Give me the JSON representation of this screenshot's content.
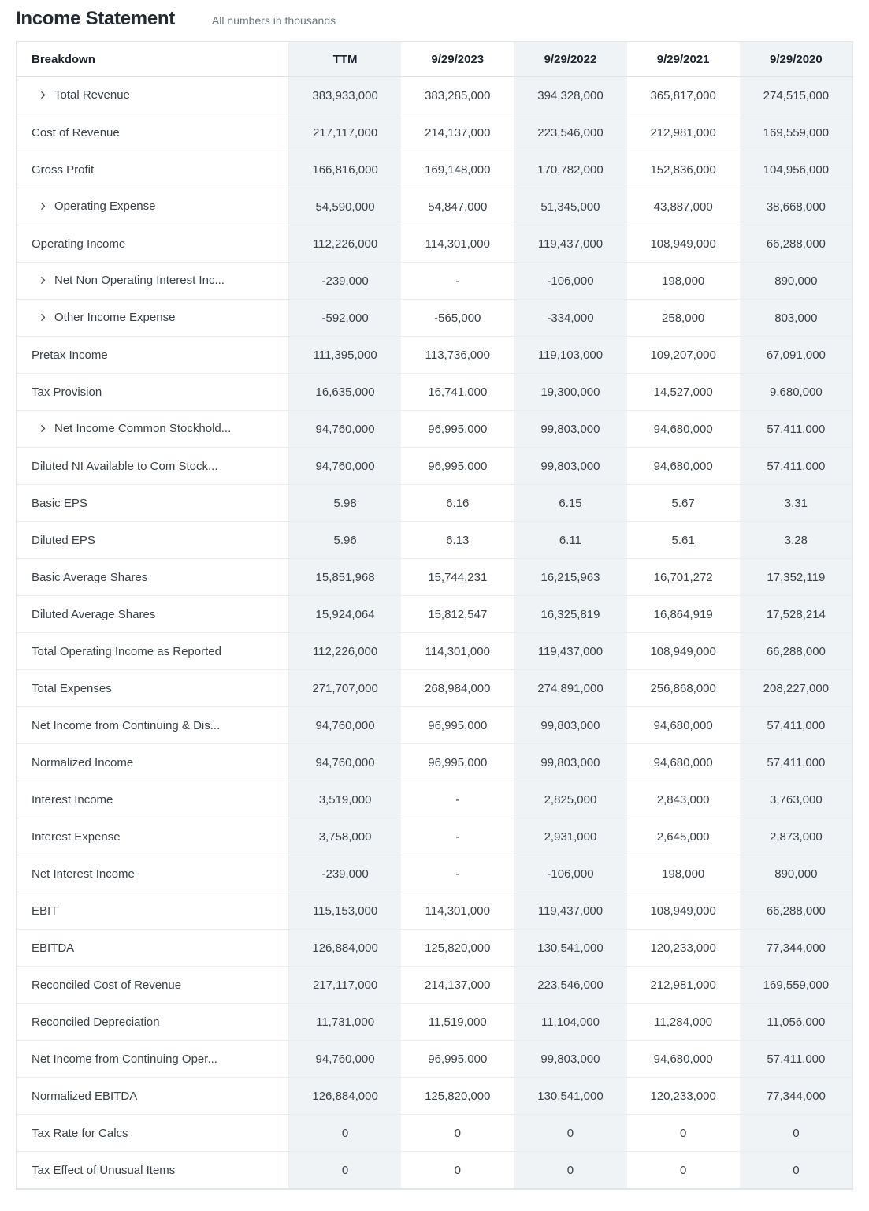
{
  "page": {
    "title": "Income Statement",
    "subtitle": "All numbers in thousands"
  },
  "colors": {
    "stripe_background": "#f0f3f6",
    "table_border": "#e2e6ea",
    "header_text": "#1b222c",
    "body_text": "#3a4149",
    "subtitle_text": "#6e7780"
  },
  "table": {
    "columns": [
      "Breakdown",
      "TTM",
      "9/29/2023",
      "9/29/2022",
      "9/29/2021",
      "9/29/2020"
    ],
    "rows": [
      {
        "label": "Total Revenue",
        "expandable": true,
        "values": [
          "383,933,000",
          "383,285,000",
          "394,328,000",
          "365,817,000",
          "274,515,000"
        ]
      },
      {
        "label": "Cost of Revenue",
        "expandable": false,
        "values": [
          "217,117,000",
          "214,137,000",
          "223,546,000",
          "212,981,000",
          "169,559,000"
        ]
      },
      {
        "label": "Gross Profit",
        "expandable": false,
        "values": [
          "166,816,000",
          "169,148,000",
          "170,782,000",
          "152,836,000",
          "104,956,000"
        ]
      },
      {
        "label": "Operating Expense",
        "expandable": true,
        "values": [
          "54,590,000",
          "54,847,000",
          "51,345,000",
          "43,887,000",
          "38,668,000"
        ]
      },
      {
        "label": "Operating Income",
        "expandable": false,
        "values": [
          "112,226,000",
          "114,301,000",
          "119,437,000",
          "108,949,000",
          "66,288,000"
        ]
      },
      {
        "label": "Net Non Operating Interest Inc...",
        "expandable": true,
        "values": [
          "-239,000",
          "-",
          "-106,000",
          "198,000",
          "890,000"
        ]
      },
      {
        "label": "Other Income Expense",
        "expandable": true,
        "values": [
          "-592,000",
          "-565,000",
          "-334,000",
          "258,000",
          "803,000"
        ]
      },
      {
        "label": "Pretax Income",
        "expandable": false,
        "values": [
          "111,395,000",
          "113,736,000",
          "119,103,000",
          "109,207,000",
          "67,091,000"
        ]
      },
      {
        "label": "Tax Provision",
        "expandable": false,
        "values": [
          "16,635,000",
          "16,741,000",
          "19,300,000",
          "14,527,000",
          "9,680,000"
        ]
      },
      {
        "label": "Net Income Common Stockhold...",
        "expandable": true,
        "values": [
          "94,760,000",
          "96,995,000",
          "99,803,000",
          "94,680,000",
          "57,411,000"
        ]
      },
      {
        "label": "Diluted NI Available to Com Stock...",
        "expandable": false,
        "values": [
          "94,760,000",
          "96,995,000",
          "99,803,000",
          "94,680,000",
          "57,411,000"
        ]
      },
      {
        "label": "Basic EPS",
        "expandable": false,
        "values": [
          "5.98",
          "6.16",
          "6.15",
          "5.67",
          "3.31"
        ]
      },
      {
        "label": "Diluted EPS",
        "expandable": false,
        "values": [
          "5.96",
          "6.13",
          "6.11",
          "5.61",
          "3.28"
        ]
      },
      {
        "label": "Basic Average Shares",
        "expandable": false,
        "values": [
          "15,851,968",
          "15,744,231",
          "16,215,963",
          "16,701,272",
          "17,352,119"
        ]
      },
      {
        "label": "Diluted Average Shares",
        "expandable": false,
        "values": [
          "15,924,064",
          "15,812,547",
          "16,325,819",
          "16,864,919",
          "17,528,214"
        ]
      },
      {
        "label": "Total Operating Income as Reported",
        "expandable": false,
        "values": [
          "112,226,000",
          "114,301,000",
          "119,437,000",
          "108,949,000",
          "66,288,000"
        ]
      },
      {
        "label": "Total Expenses",
        "expandable": false,
        "values": [
          "271,707,000",
          "268,984,000",
          "274,891,000",
          "256,868,000",
          "208,227,000"
        ]
      },
      {
        "label": "Net Income from Continuing & Dis...",
        "expandable": false,
        "values": [
          "94,760,000",
          "96,995,000",
          "99,803,000",
          "94,680,000",
          "57,411,000"
        ]
      },
      {
        "label": "Normalized Income",
        "expandable": false,
        "values": [
          "94,760,000",
          "96,995,000",
          "99,803,000",
          "94,680,000",
          "57,411,000"
        ]
      },
      {
        "label": "Interest Income",
        "expandable": false,
        "values": [
          "3,519,000",
          "-",
          "2,825,000",
          "2,843,000",
          "3,763,000"
        ]
      },
      {
        "label": "Interest Expense",
        "expandable": false,
        "values": [
          "3,758,000",
          "-",
          "2,931,000",
          "2,645,000",
          "2,873,000"
        ]
      },
      {
        "label": "Net Interest Income",
        "expandable": false,
        "values": [
          "-239,000",
          "-",
          "-106,000",
          "198,000",
          "890,000"
        ]
      },
      {
        "label": "EBIT",
        "expandable": false,
        "values": [
          "115,153,000",
          "114,301,000",
          "119,437,000",
          "108,949,000",
          "66,288,000"
        ]
      },
      {
        "label": "EBITDA",
        "expandable": false,
        "values": [
          "126,884,000",
          "125,820,000",
          "130,541,000",
          "120,233,000",
          "77,344,000"
        ]
      },
      {
        "label": "Reconciled Cost of Revenue",
        "expandable": false,
        "values": [
          "217,117,000",
          "214,137,000",
          "223,546,000",
          "212,981,000",
          "169,559,000"
        ]
      },
      {
        "label": "Reconciled Depreciation",
        "expandable": false,
        "values": [
          "11,731,000",
          "11,519,000",
          "11,104,000",
          "11,284,000",
          "11,056,000"
        ]
      },
      {
        "label": "Net Income from Continuing Oper...",
        "expandable": false,
        "values": [
          "94,760,000",
          "96,995,000",
          "99,803,000",
          "94,680,000",
          "57,411,000"
        ]
      },
      {
        "label": "Normalized EBITDA",
        "expandable": false,
        "values": [
          "126,884,000",
          "125,820,000",
          "130,541,000",
          "120,233,000",
          "77,344,000"
        ]
      },
      {
        "label": "Tax Rate for Calcs",
        "expandable": false,
        "values": [
          "0",
          "0",
          "0",
          "0",
          "0"
        ]
      },
      {
        "label": "Tax Effect of Unusual Items",
        "expandable": false,
        "values": [
          "0",
          "0",
          "0",
          "0",
          "0"
        ]
      }
    ]
  }
}
